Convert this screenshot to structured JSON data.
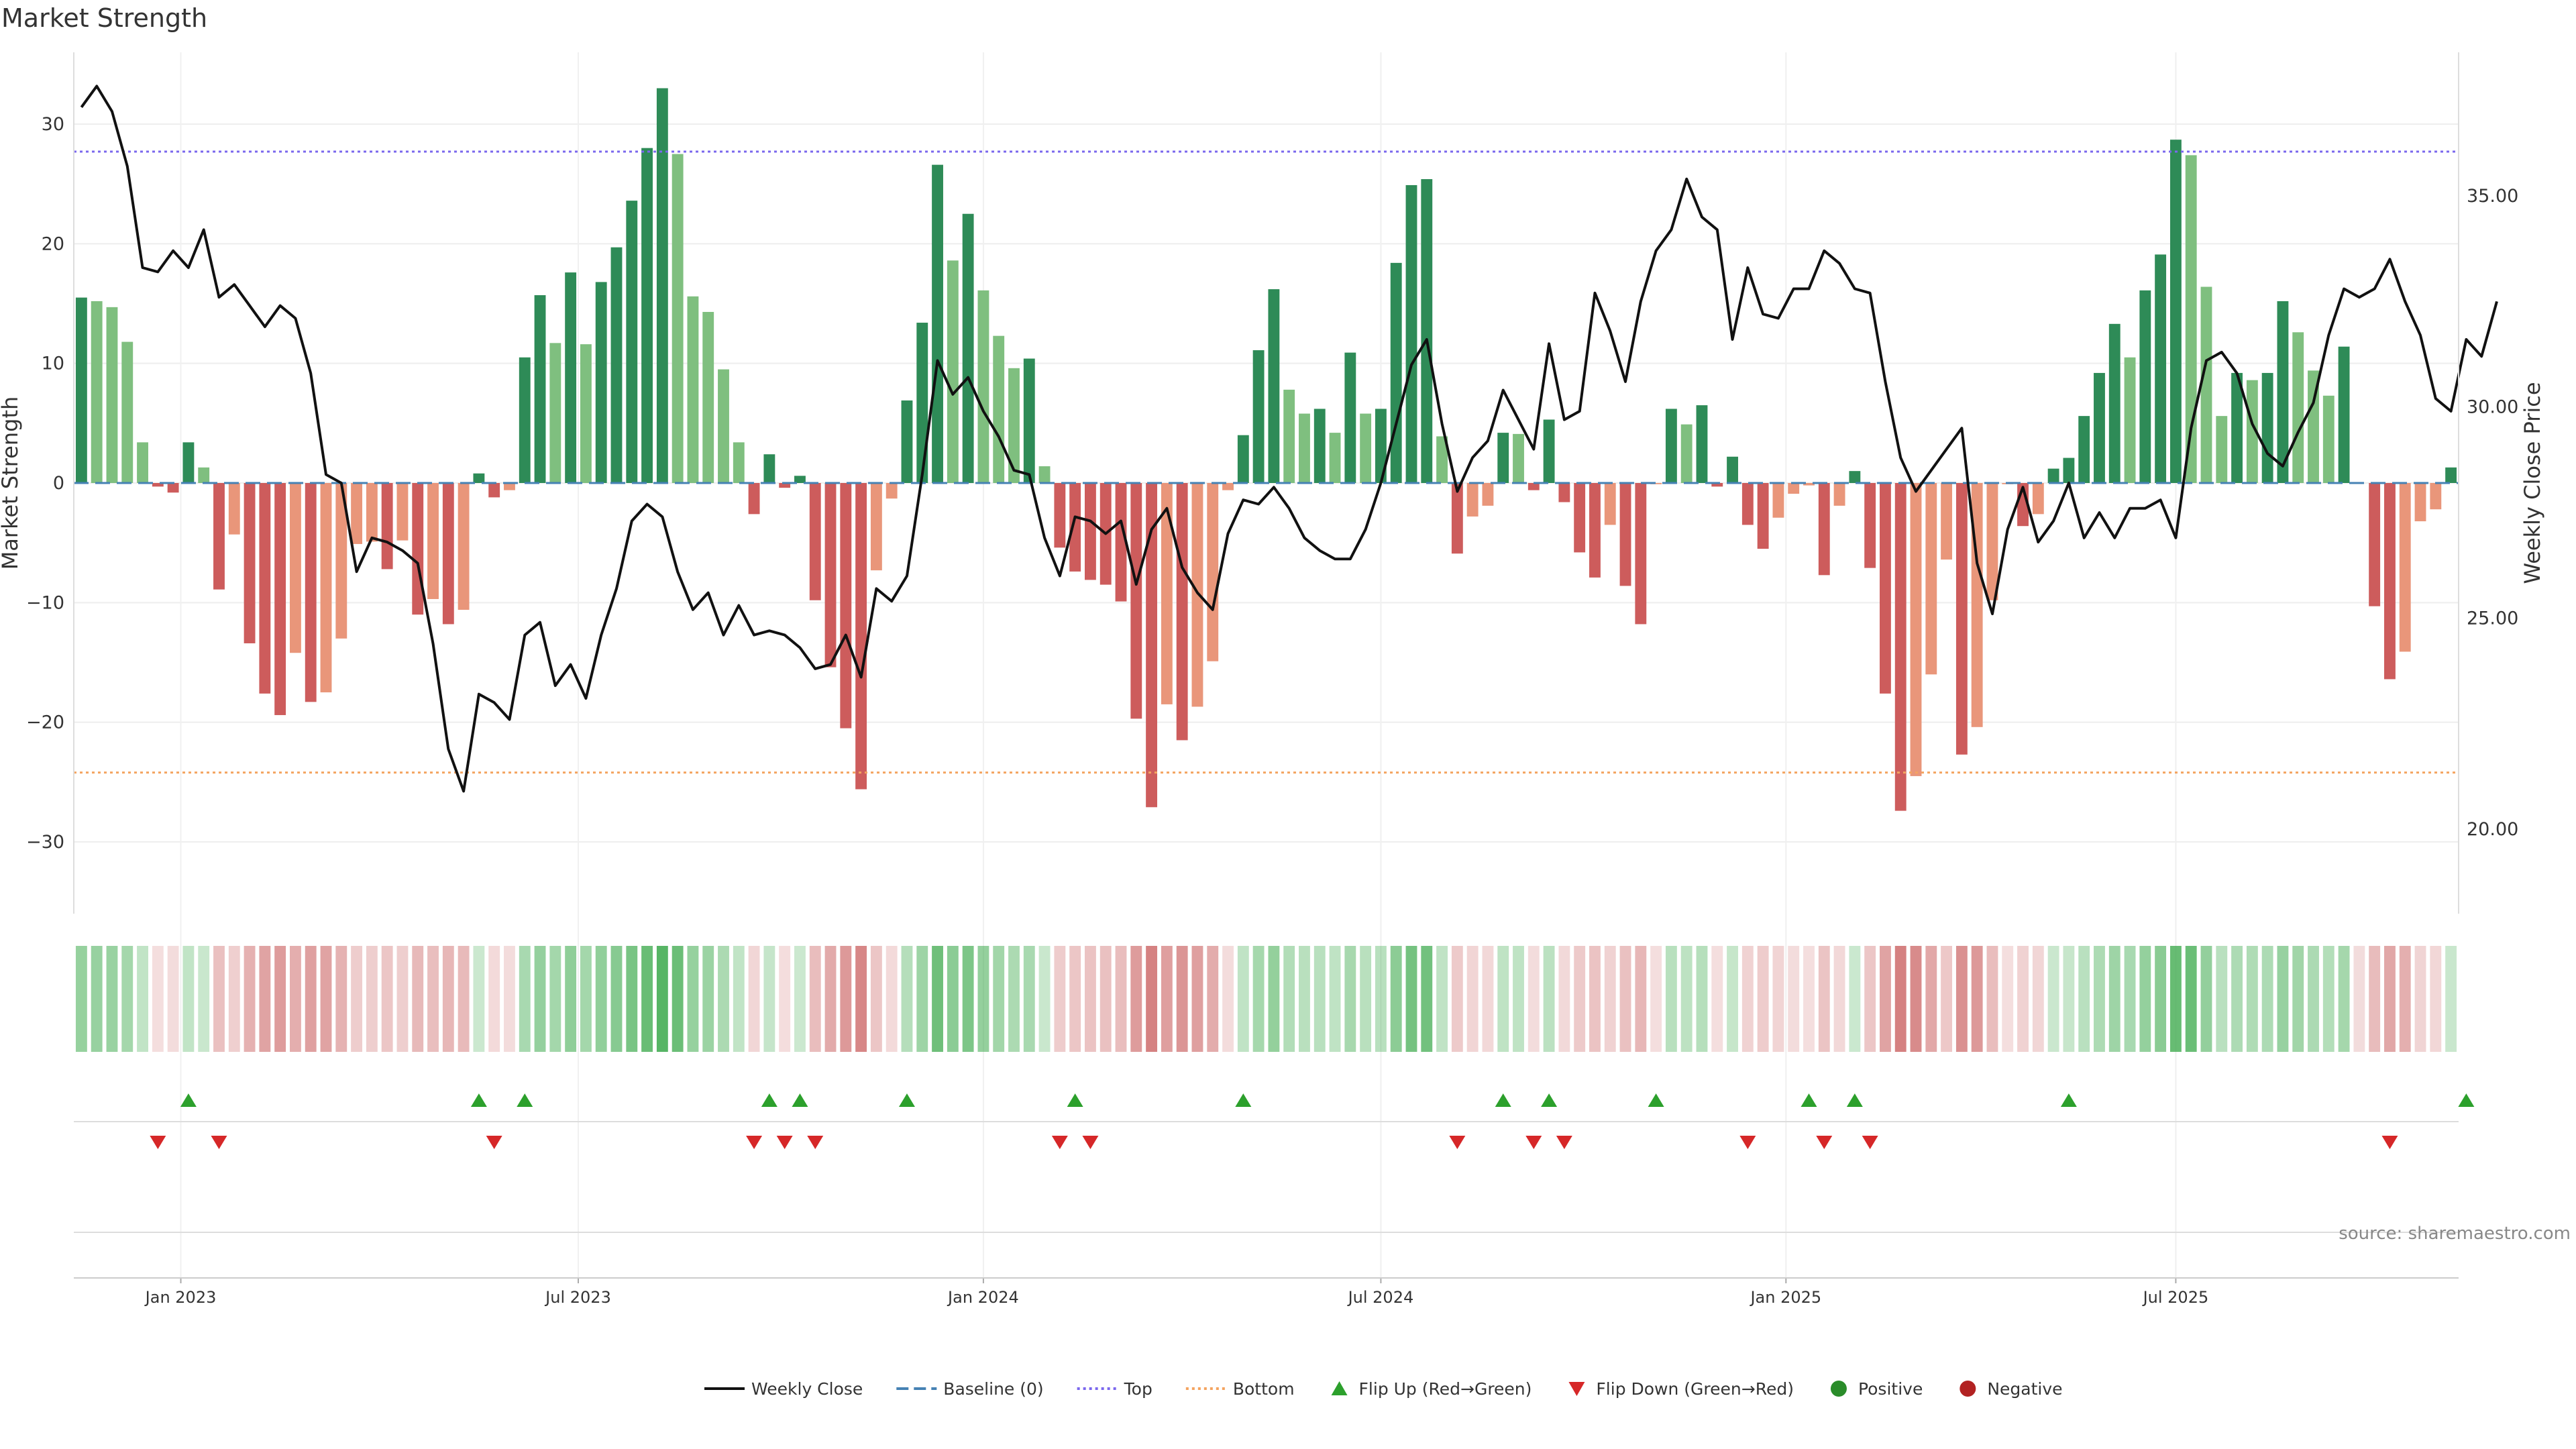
{
  "chart_data": {
    "type": "bar",
    "title": "Market Strength",
    "ylabel_left": "Market Strength",
    "ylabel_right": "Weekly Close Price",
    "ylim_left": [
      -36,
      36
    ],
    "ylim_right": [
      18.0,
      38.4
    ],
    "yticks_left": [
      -30,
      -20,
      -10,
      0,
      10,
      20,
      30
    ],
    "yticks_right": [
      "20.00",
      "25.00",
      "30.00",
      "35.00"
    ],
    "yticks_right_values": [
      20,
      25,
      30,
      35
    ],
    "x_tick_labels": [
      "Jan 2023",
      "Jul 2023",
      "Jan 2024",
      "Jul 2024",
      "Jan 2025",
      "Jul 2025"
    ],
    "x_tick_weeks": [
      7,
      33,
      59.5,
      85.5,
      112,
      137.5
    ],
    "top_level": 27.7,
    "bottom_level": -24.2,
    "baseline": 0,
    "strength": [
      15.5,
      15.2,
      14.7,
      11.8,
      3.4,
      -0.3,
      -0.8,
      3.4,
      1.3,
      -8.9,
      -4.3,
      -13.4,
      -17.6,
      -19.4,
      -14.2,
      -18.3,
      -17.5,
      -13.0,
      -5.1,
      -4.9,
      -7.2,
      -4.8,
      -11.0,
      -9.7,
      -11.8,
      -10.6,
      0.8,
      -1.2,
      -0.6,
      10.5,
      15.7,
      11.7,
      17.6,
      11.6,
      16.8,
      19.7,
      23.6,
      28.0,
      33.0,
      27.5,
      15.6,
      14.3,
      9.5,
      3.4,
      -2.6,
      2.4,
      -0.4,
      0.6,
      -9.8,
      -15.4,
      -20.5,
      -25.6,
      -7.3,
      -1.3,
      6.9,
      13.4,
      26.6,
      18.6,
      22.5,
      16.1,
      12.3,
      9.6,
      10.4,
      1.4,
      -5.4,
      -7.4,
      -8.1,
      -8.5,
      -9.9,
      -19.7,
      -27.1,
      -18.5,
      -21.5,
      -18.7,
      -14.9,
      -0.6,
      4.0,
      11.1,
      16.2,
      7.8,
      5.8,
      6.2,
      4.2,
      10.9,
      5.8,
      6.2,
      18.4,
      24.9,
      25.4,
      3.9,
      -5.9,
      -2.8,
      -1.9,
      4.2,
      4.1,
      -0.6,
      5.3,
      -1.6,
      -5.8,
      -7.9,
      -3.5,
      -8.6,
      -11.8,
      -0.1,
      6.2,
      4.9,
      6.5,
      -0.3,
      2.2,
      -3.5,
      -5.5,
      -2.9,
      -0.9,
      -0.2,
      -7.7,
      -1.9,
      1.0,
      -7.1,
      -17.6,
      -27.4,
      -24.5,
      -16.0,
      -6.4,
      -22.7,
      -20.4,
      -9.8,
      -0.1,
      -3.6,
      -2.6,
      1.2,
      2.1,
      5.6,
      9.2,
      13.3,
      10.5,
      16.1,
      19.1,
      28.7,
      27.4,
      16.4,
      5.6,
      9.2,
      8.6,
      9.2,
      15.2,
      12.6,
      9.4,
      7.3,
      11.4,
      0,
      -10.3,
      -16.4,
      -14.1,
      -3.2,
      -2.2,
      1.3
    ],
    "weekly_close": [
      37.1,
      37.6,
      37.0,
      35.7,
      33.3,
      33.2,
      33.7,
      33.3,
      34.2,
      32.6,
      32.9,
      32.4,
      31.9,
      32.4,
      32.1,
      30.8,
      28.4,
      28.2,
      26.1,
      26.9,
      26.8,
      26.6,
      26.3,
      24.4,
      21.9,
      20.9,
      23.2,
      23.0,
      22.6,
      24.6,
      24.9,
      23.4,
      23.9,
      23.1,
      24.6,
      25.7,
      27.3,
      27.7,
      27.4,
      26.1,
      25.2,
      25.6,
      24.6,
      25.3,
      24.6,
      24.7,
      24.6,
      24.3,
      23.8,
      23.9,
      24.6,
      23.6,
      25.7,
      25.4,
      26.0,
      28.4,
      31.1,
      30.3,
      30.7,
      29.9,
      29.3,
      28.5,
      28.4,
      26.9,
      26.0,
      27.4,
      27.3,
      27.0,
      27.3,
      25.8,
      27.1,
      27.6,
      26.2,
      25.6,
      25.2,
      27.0,
      27.8,
      27.7,
      28.1,
      27.6,
      26.9,
      26.6,
      26.4,
      26.4,
      27.1,
      28.2,
      29.6,
      31.0,
      31.6,
      29.6,
      28.0,
      28.8,
      29.2,
      30.4,
      29.7,
      29.0,
      31.5,
      29.7,
      29.9,
      32.7,
      31.8,
      30.6,
      32.5,
      33.7,
      34.2,
      35.4,
      34.5,
      34.2,
      31.6,
      33.3,
      32.2,
      32.1,
      32.8,
      32.8,
      33.7,
      33.4,
      32.8,
      32.7,
      30.6,
      28.8,
      28.0,
      28.5,
      29.0,
      29.5,
      26.3,
      25.1,
      27.1,
      28.1,
      26.8,
      27.3,
      28.2,
      26.9,
      27.5,
      26.9,
      27.6,
      27.6,
      27.8,
      26.9,
      29.5,
      31.1,
      31.3,
      30.8,
      29.6,
      28.9,
      28.6,
      29.4,
      30.1,
      31.7,
      32.8,
      32.6,
      32.8,
      33.5,
      32.5,
      31.7,
      30.2,
      29.9,
      31.6,
      31.2,
      32.5
    ],
    "flip_up_weeks": [
      7,
      26,
      29,
      45,
      47,
      54,
      65,
      76,
      93,
      96,
      103,
      113,
      116,
      130,
      156
    ],
    "flip_down_weeks": [
      5,
      9,
      27,
      44,
      46,
      48,
      64,
      66,
      90,
      95,
      97,
      109,
      114,
      117,
      151
    ],
    "colors": {
      "strong_positive": "#2e8b57",
      "weak_positive": "#7fbf7f",
      "strong_negative": "#cd5c5c",
      "weak_negative": "#e9967a",
      "price_line": "#111111",
      "top_line": "#7b68ee",
      "bottom_line": "#f4a460",
      "baseline": "#4682b4",
      "flip_up": "#2ca02c",
      "flip_down": "#d62728",
      "positive_marker": "#2a8c2a",
      "negative_marker": "#b22222"
    },
    "legend": [
      "Weekly Close",
      "Baseline (0)",
      "Top",
      "Bottom",
      "Flip Up (Red→Green)",
      "Flip Down (Green→Red)",
      "Positive",
      "Negative"
    ],
    "source": "source: sharemaestro.com"
  }
}
